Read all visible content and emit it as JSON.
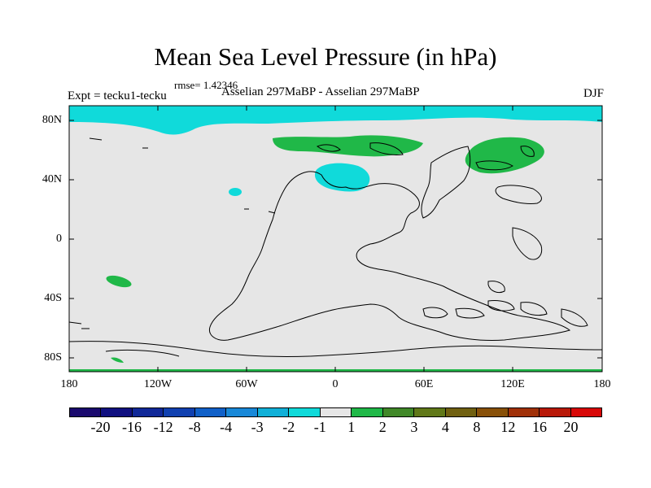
{
  "title": "Mean Sea Level Pressure (in hPa)",
  "rmse": "rmse= 1.42346",
  "expt": "Expt = tecku1-tecku",
  "subtitle": "Asselian 297MaBP - Asselian 297MaBP",
  "season": "DJF",
  "map": {
    "background_color": "#e6e6e6",
    "lat_labels": [
      "80N",
      "40N",
      "0",
      "40S",
      "80S"
    ],
    "lon_labels": [
      "180",
      "120W",
      "60W",
      "0",
      "60E",
      "120E",
      "180"
    ]
  },
  "colorbar": {
    "colors": [
      "#1a0a6e",
      "#101080",
      "#102898",
      "#1040b0",
      "#1060c8",
      "#1888d8",
      "#10b0d8",
      "#10dada",
      "#e6e6e6",
      "#20b848",
      "#408828",
      "#607818",
      "#706010",
      "#885008",
      "#a03008",
      "#b81808",
      "#d80808"
    ],
    "labels": [
      "-20",
      "-16",
      "-12",
      "-8",
      "-4",
      "-3",
      "-2",
      "-1",
      "1",
      "2",
      "3",
      "4",
      "8",
      "12",
      "16",
      "20"
    ]
  }
}
